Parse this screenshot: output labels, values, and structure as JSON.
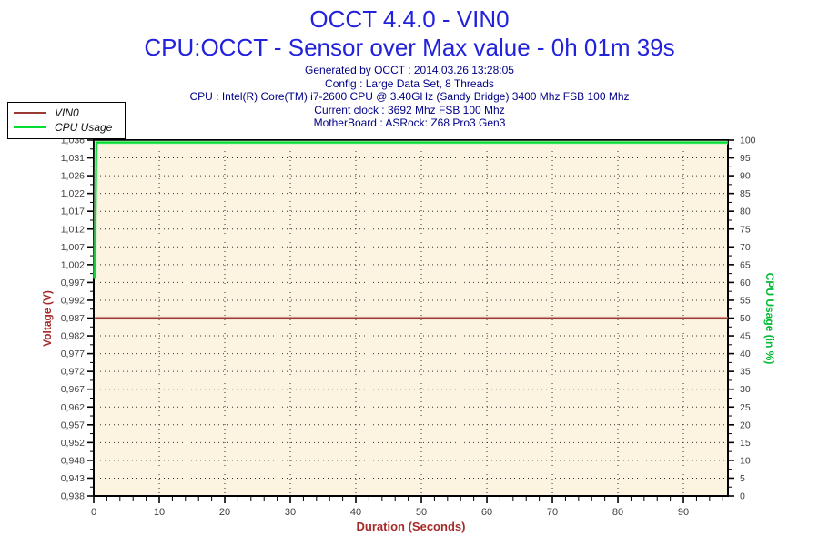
{
  "header": {
    "title": "OCCT 4.4.0 - VIN0",
    "subtitle": "CPU:OCCT - Sensor over Max value - 0h 01m 39s",
    "title_color": "#2222dd",
    "info_color": "#000088",
    "info_lines": [
      "Generated by OCCT : 2014.03.26 13:28:05",
      "Config : Large Data Set, 8 Threads",
      "CPU : Intel(R) Core(TM) i7-2600 CPU @ 3.40GHz (Sandy Bridge) 3400 Mhz FSB 100 Mhz",
      "Current clock : 3692 Mhz FSB 100 Mhz",
      "MotherBoard : ASRock: Z68 Pro3 Gen3"
    ]
  },
  "legend": {
    "items": [
      {
        "label": "VIN0",
        "color": "#9a3a34"
      },
      {
        "label": "CPU Usage",
        "color": "#00dd33"
      }
    ]
  },
  "chart_data": {
    "type": "line",
    "xlabel": "Duration (Seconds)",
    "ylabel_left": "Voltage (V)",
    "ylabel_right": "CPU Usage (in %)",
    "x_ticks": [
      0,
      10,
      20,
      30,
      40,
      50,
      60,
      70,
      80,
      90
    ],
    "x_minor_step": 2,
    "x_range": [
      0,
      96.8
    ],
    "y_left_labels": [
      "1,036",
      "1,031",
      "1,026",
      "1,022",
      "1,017",
      "1,012",
      "1,007",
      "1,002",
      "0,997",
      "0,992",
      "0,987",
      "0,982",
      "0,977",
      "0,972",
      "0,967",
      "0,962",
      "0,957",
      "0,952",
      "0,948",
      "0,943",
      "0,938"
    ],
    "y_left_range": [
      0.938,
      1.036
    ],
    "y_right_labels": [
      "100",
      "95",
      "90",
      "85",
      "80",
      "75",
      "70",
      "65",
      "60",
      "55",
      "50",
      "45",
      "40",
      "35",
      "30",
      "25",
      "20",
      "15",
      "10",
      "5",
      "0"
    ],
    "y_right_range": [
      0,
      100
    ],
    "grid": "dotted",
    "legend_position": "top-left",
    "plot_bg": "#fcf4e1",
    "axis_color": "#000000",
    "tick_label_color": "#3f3f3f",
    "xlabel_color": "#a52a2a",
    "ylabel_left_color": "#a52a2a",
    "ylabel_right_color": "#00bb33",
    "series": [
      {
        "name": "VIN0",
        "axis": "left",
        "color": "#9a3a34",
        "halo": "#e3b4aa",
        "width": 1.8,
        "points": [
          [
            0,
            0.987
          ],
          [
            96.8,
            0.987
          ]
        ]
      },
      {
        "name": "CPU Usage",
        "axis": "right",
        "color": "#00dd33",
        "halo": "#b5f2b5",
        "width": 2.2,
        "points": [
          [
            0,
            61
          ],
          [
            0.4,
            100
          ],
          [
            96.8,
            100
          ]
        ]
      }
    ]
  }
}
